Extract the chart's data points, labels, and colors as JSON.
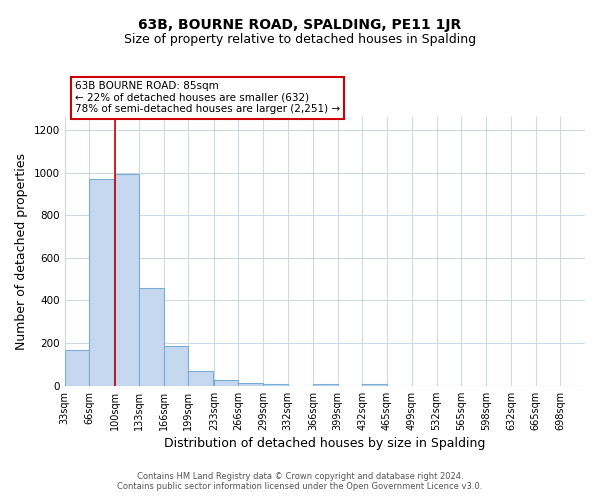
{
  "title": "63B, BOURNE ROAD, SPALDING, PE11 1JR",
  "subtitle": "Size of property relative to detached houses in Spalding",
  "xlabel": "Distribution of detached houses by size in Spalding",
  "ylabel": "Number of detached properties",
  "bar_labels": [
    "33sqm",
    "66sqm",
    "100sqm",
    "133sqm",
    "166sqm",
    "199sqm",
    "233sqm",
    "266sqm",
    "299sqm",
    "332sqm",
    "366sqm",
    "399sqm",
    "432sqm",
    "465sqm",
    "499sqm",
    "532sqm",
    "565sqm",
    "598sqm",
    "632sqm",
    "665sqm",
    "698sqm"
  ],
  "bar_values": [
    170,
    970,
    995,
    460,
    185,
    70,
    25,
    15,
    10,
    0,
    10,
    0,
    10,
    0,
    0,
    0,
    0,
    0,
    0,
    0,
    0
  ],
  "bar_color": "#c5d8ef",
  "bar_edge_color": "#7aadd4",
  "vline_color": "#cc0000",
  "ylim": [
    0,
    1260
  ],
  "annotation_line1": "63B BOURNE ROAD: 85sqm",
  "annotation_line2": "← 22% of detached houses are smaller (632)",
  "annotation_line3": "78% of semi-detached houses are larger (2,251) →",
  "footer_line1": "Contains HM Land Registry data © Crown copyright and database right 2024.",
  "footer_line2": "Contains public sector information licensed under the Open Government Licence v3.0.",
  "bg_color": "#ffffff",
  "grid_color": "#c8d8e8",
  "title_fontsize": 10,
  "subtitle_fontsize": 9,
  "axis_label_fontsize": 9,
  "tick_fontsize": 7,
  "footer_fontsize": 6,
  "bin_width": 33
}
